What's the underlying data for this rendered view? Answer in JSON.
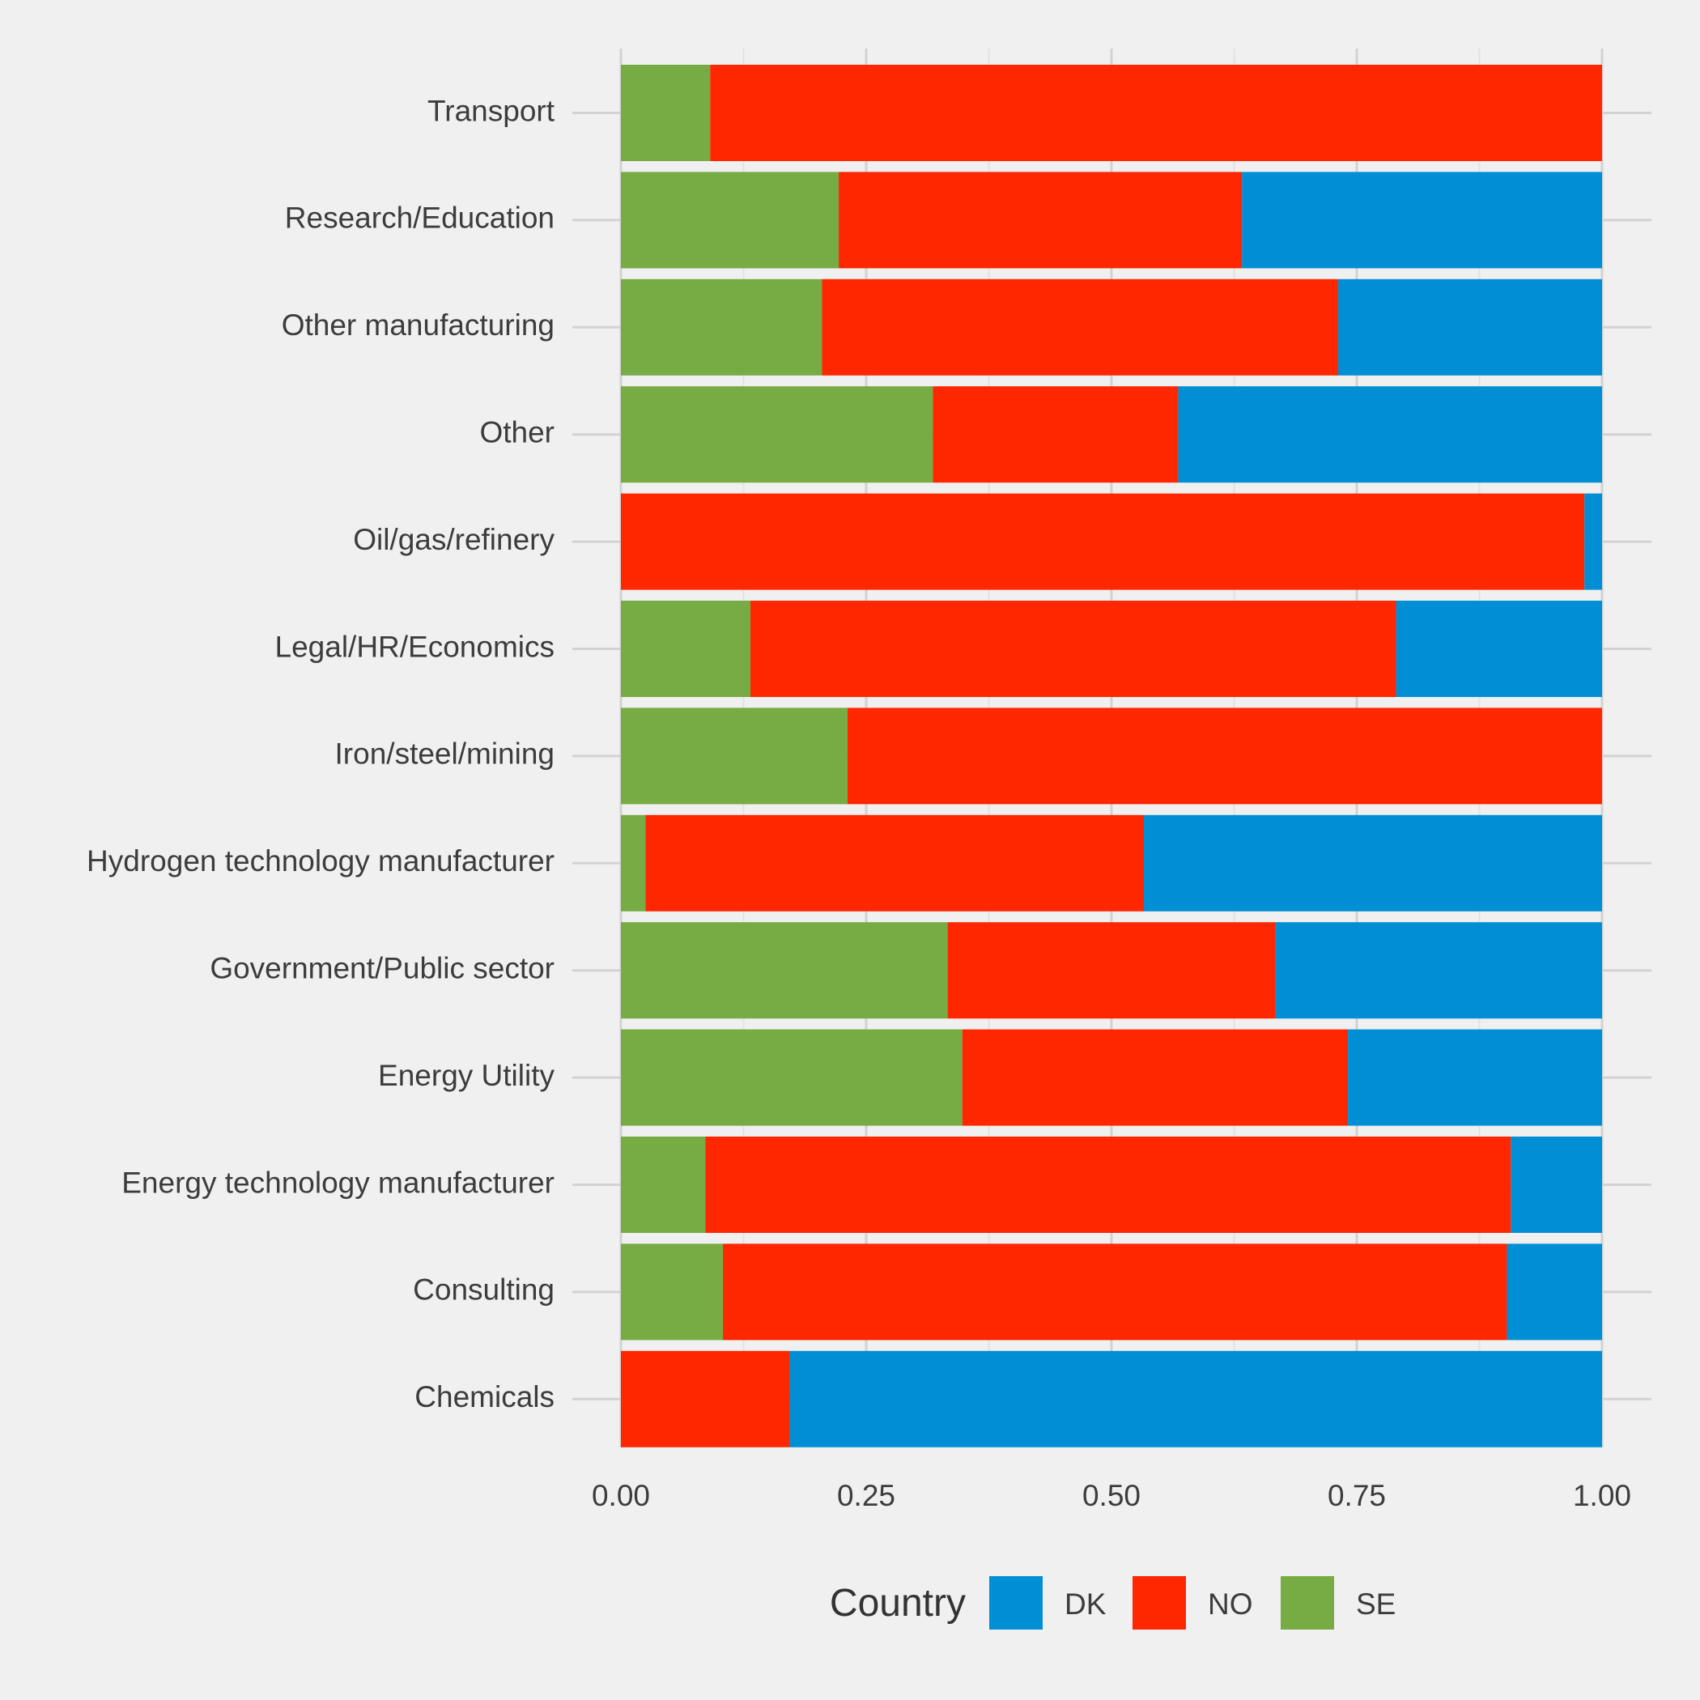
{
  "chart_data": {
    "type": "bar",
    "orientation": "horizontal",
    "stacked": "proportional",
    "title": "",
    "xlabel": "",
    "ylabel": "",
    "xlim": [
      0,
      1
    ],
    "x_ticks": [
      "0.00",
      "0.25",
      "0.50",
      "0.75",
      "1.00"
    ],
    "x_tick_values": [
      0,
      0.25,
      0.5,
      0.75,
      1.0
    ],
    "grid": true,
    "categories": [
      "Transport",
      "Research/Education",
      "Other manufacturing",
      "Other",
      "Oil/gas/refinery",
      "Legal/HR/Economics",
      "Iron/steel/mining",
      "Hydrogen technology manufacturer",
      "Government/Public sector",
      "Energy Utility",
      "Energy technology manufacturer",
      "Consulting",
      "Chemicals"
    ],
    "stack_order_from_left": [
      "SE",
      "NO",
      "DK"
    ],
    "series": [
      {
        "name": "SE",
        "color": "#77ab43",
        "values": [
          0.091,
          0.222,
          0.205,
          0.318,
          0.0,
          0.132,
          0.231,
          0.025,
          0.333,
          0.348,
          0.086,
          0.104,
          0.0
        ]
      },
      {
        "name": "NO",
        "color": "#ff2700",
        "values": [
          0.909,
          0.411,
          0.526,
          0.25,
          0.982,
          0.658,
          0.769,
          0.508,
          0.334,
          0.393,
          0.821,
          0.799,
          0.172
        ]
      },
      {
        "name": "DK",
        "color": "#008fd5",
        "values": [
          0.0,
          0.367,
          0.269,
          0.432,
          0.018,
          0.21,
          0.0,
          0.467,
          0.333,
          0.259,
          0.093,
          0.097,
          0.828
        ]
      }
    ],
    "legend": {
      "position": "bottom",
      "title": "Country",
      "items": [
        {
          "label": "DK",
          "color": "#008fd5"
        },
        {
          "label": "NO",
          "color": "#ff2700"
        },
        {
          "label": "SE",
          "color": "#77ab43"
        }
      ]
    }
  }
}
